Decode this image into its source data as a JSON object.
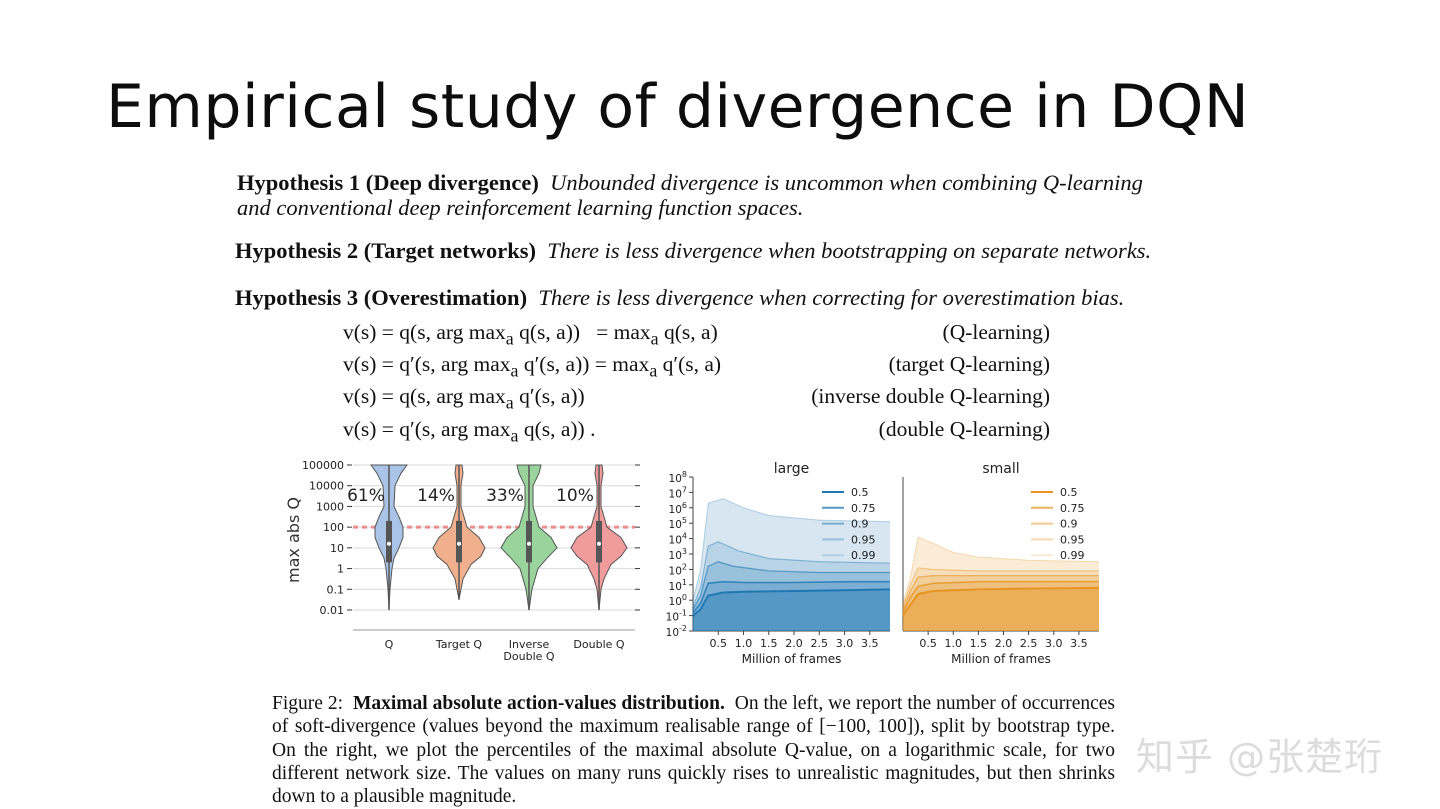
{
  "slide": {
    "title": "Empirical study of divergence in DQN",
    "watermark": "知乎 @张楚珩"
  },
  "hypotheses": [
    {
      "label": "Hypothesis 1 (Deep divergence)",
      "text_line1": "Unbounded divergence is uncommon when combining Q-learning",
      "text_line2": "and conventional deep reinforcement learning function spaces."
    },
    {
      "label": "Hypothesis 2 (Target networks)",
      "text": "There is less divergence when bootstrapping on separate networks."
    },
    {
      "label": "Hypothesis 3 (Overestimation)",
      "text": "There is less divergence when correcting for overestimation bias."
    }
  ],
  "equations": [
    {
      "lhs": "v(s) = q(s, arg max",
      "sub": "a",
      "mid": " q(s, a))",
      "rhs_pre": "= max",
      "rhs_sub": "a",
      "rhs_post": " q(s, a)",
      "name": "(Q-learning)"
    },
    {
      "lhs": "v(s) = q′(s, arg max",
      "sub": "a",
      "mid": " q′(s, a))",
      "rhs_pre": "= max",
      "rhs_sub": "a",
      "rhs_post": " q′(s, a)",
      "name": "(target Q-learning)"
    },
    {
      "lhs": "v(s) = q(s, arg max",
      "sub": "a",
      "mid": " q′(s, a))",
      "rhs_pre": "",
      "rhs_sub": "",
      "rhs_post": "",
      "name": "(inverse double Q-learning)"
    },
    {
      "lhs": "v(s) = q′(s, arg max",
      "sub": "a",
      "mid": " q(s, a)) .",
      "rhs_pre": "",
      "rhs_sub": "",
      "rhs_post": "",
      "name": "(double Q-learning)"
    }
  ],
  "chart_data": [
    {
      "type": "violin",
      "ylabel": "max abs Q",
      "yscale": "log",
      "yticks": [
        "100000",
        "10000",
        "1000",
        "100",
        "10",
        "1",
        "0.1",
        "0.01"
      ],
      "threshold": 100,
      "categories": [
        "Q",
        "Target Q",
        "Inverse Double Q",
        "Double Q"
      ],
      "percent_labels": [
        "61%",
        "14%",
        "33%",
        "10%"
      ],
      "colors": [
        "#a9c4e6",
        "#f0b08e",
        "#98d49c",
        "#f19c9c"
      ],
      "ranges_log10": [
        [
          -2,
          5
        ],
        [
          -1.5,
          5
        ],
        [
          -2,
          5
        ],
        [
          -2,
          5
        ]
      ]
    },
    {
      "type": "area",
      "title": "large",
      "xlabel": "Million of frames",
      "xticks": [
        "0.5",
        "1.0",
        "1.5",
        "2.0",
        "2.5",
        "3.0",
        "3.5"
      ],
      "xlim": [
        0,
        3.9
      ],
      "yscale": "log",
      "ylim_log10": [
        -2,
        8
      ],
      "yticks": [
        {
          "b": "10",
          "e": "8"
        },
        {
          "b": "10",
          "e": "7"
        },
        {
          "b": "10",
          "e": "6"
        },
        {
          "b": "10",
          "e": "5"
        },
        {
          "b": "10",
          "e": "4"
        },
        {
          "b": "10",
          "e": "3"
        },
        {
          "b": "10",
          "e": "2"
        },
        {
          "b": "10",
          "e": "1"
        },
        {
          "b": "10",
          "e": "0"
        },
        {
          "b": "10",
          "e": "-1"
        },
        {
          "b": "10",
          "e": "-2"
        }
      ],
      "legend": [
        "0.5",
        "0.75",
        "0.9",
        "0.95",
        "0.99"
      ],
      "color": "#1f77b4",
      "percentiles_log10": {
        "0.5": [
          [
            0,
            -1.0
          ],
          [
            0.15,
            -0.6
          ],
          [
            0.3,
            0.3
          ],
          [
            0.6,
            0.5
          ],
          [
            1.0,
            0.55
          ],
          [
            2.0,
            0.6
          ],
          [
            3.0,
            0.65
          ],
          [
            3.9,
            0.7
          ]
        ],
        "0.75": [
          [
            0,
            -0.8
          ],
          [
            0.15,
            -0.2
          ],
          [
            0.3,
            1.1
          ],
          [
            0.6,
            1.2
          ],
          [
            1.0,
            1.15
          ],
          [
            2.0,
            1.15
          ],
          [
            3.0,
            1.2
          ],
          [
            3.9,
            1.2
          ]
        ],
        "0.9": [
          [
            0,
            -0.6
          ],
          [
            0.15,
            0.3
          ],
          [
            0.3,
            2.2
          ],
          [
            0.5,
            2.5
          ],
          [
            0.8,
            2.2
          ],
          [
            1.5,
            1.9
          ],
          [
            2.5,
            1.8
          ],
          [
            3.9,
            1.8
          ]
        ],
        "0.95": [
          [
            0,
            -0.4
          ],
          [
            0.15,
            0.8
          ],
          [
            0.3,
            3.5
          ],
          [
            0.5,
            3.8
          ],
          [
            0.9,
            3.2
          ],
          [
            1.5,
            2.7
          ],
          [
            2.5,
            2.5
          ],
          [
            3.9,
            2.4
          ]
        ],
        "0.99": [
          [
            0,
            0.0
          ],
          [
            0.15,
            2.0
          ],
          [
            0.3,
            6.3
          ],
          [
            0.6,
            6.6
          ],
          [
            1.0,
            6.0
          ],
          [
            1.5,
            5.5
          ],
          [
            2.5,
            5.2
          ],
          [
            3.9,
            5.1
          ]
        ]
      }
    },
    {
      "type": "area",
      "title": "small",
      "xlabel": "Million of frames",
      "xticks": [
        "0.5",
        "1.0",
        "1.5",
        "2.0",
        "2.5",
        "3.0",
        "3.5"
      ],
      "xlim": [
        0,
        3.9
      ],
      "yscale": "log",
      "ylim_log10": [
        -2,
        8
      ],
      "legend": [
        "0.5",
        "0.75",
        "0.9",
        "0.95",
        "0.99"
      ],
      "color": "#e69524",
      "percentiles_log10": {
        "0.5": [
          [
            0,
            -1.0
          ],
          [
            0.15,
            -0.3
          ],
          [
            0.3,
            0.4
          ],
          [
            0.6,
            0.6
          ],
          [
            1.5,
            0.7
          ],
          [
            2.5,
            0.75
          ],
          [
            3.9,
            0.8
          ]
        ],
        "0.75": [
          [
            0,
            -0.8
          ],
          [
            0.15,
            0.2
          ],
          [
            0.3,
            0.9
          ],
          [
            0.6,
            1.1
          ],
          [
            1.5,
            1.2
          ],
          [
            2.5,
            1.2
          ],
          [
            3.9,
            1.2
          ]
        ],
        "0.9": [
          [
            0,
            -0.6
          ],
          [
            0.15,
            0.6
          ],
          [
            0.3,
            1.5
          ],
          [
            0.6,
            1.6
          ],
          [
            1.5,
            1.6
          ],
          [
            2.5,
            1.6
          ],
          [
            3.9,
            1.6
          ]
        ],
        "0.95": [
          [
            0,
            -0.4
          ],
          [
            0.15,
            1.0
          ],
          [
            0.3,
            2.1
          ],
          [
            0.6,
            2.0
          ],
          [
            1.5,
            1.9
          ],
          [
            2.5,
            1.9
          ],
          [
            3.9,
            1.9
          ]
        ],
        "0.99": [
          [
            0,
            -0.2
          ],
          [
            0.15,
            1.5
          ],
          [
            0.3,
            4.1
          ],
          [
            0.6,
            3.7
          ],
          [
            1.0,
            3.1
          ],
          [
            1.5,
            2.8
          ],
          [
            2.5,
            2.6
          ],
          [
            3.9,
            2.5
          ]
        ]
      }
    }
  ],
  "caption": {
    "prefix": "Figure 2:",
    "bold": "Maximal absolute action-values distribution.",
    "text": "On the left, we report the number of occurrences of soft-divergence (values beyond the maximum realisable range of [−100, 100]), split by bootstrap type. On the right, we plot the percentiles of the maximal absolute Q-value, on a logarithmic scale, for two different network size. The values on many runs quickly rises to unrealistic magnitudes, but then shrinks down to a plausible magnitude."
  }
}
